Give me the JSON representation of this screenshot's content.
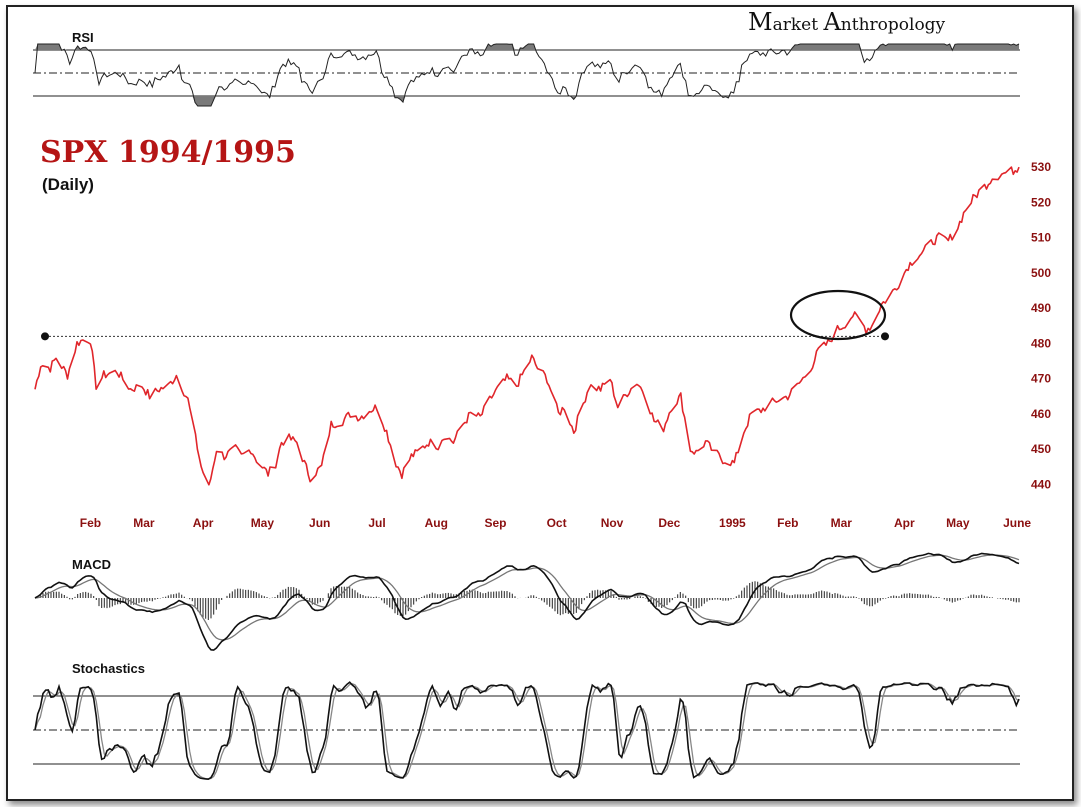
{
  "brand": {
    "first_cap": "M",
    "first_rest": "arket",
    "second_cap": "A",
    "second_rest": "nthropology"
  },
  "chart_data": {
    "type": "line",
    "title": "SPX 1994/1995",
    "subtitle": "(Daily)",
    "price_color": "#e0262b",
    "x_tick_labels": [
      "Feb",
      "Mar",
      "Apr",
      "May",
      "Jun",
      "Jul",
      "Aug",
      "Sep",
      "Oct",
      "Nov",
      "Dec",
      "1995",
      "Feb",
      "Mar",
      "Apr",
      "May",
      "June"
    ],
    "x_tick_label_1995_color": "#111111",
    "y_ticks": [
      440,
      450,
      460,
      470,
      480,
      490,
      500,
      510,
      520,
      530
    ],
    "ylim": [
      437,
      532
    ],
    "resistance_level": 482,
    "resistance_span": [
      "Feb",
      "Mar"
    ],
    "price_anchors": [
      [
        "1994-01-03",
        467
      ],
      [
        "1994-01-06",
        474
      ],
      [
        "1994-01-11",
        473
      ],
      [
        "1994-01-14",
        476
      ],
      [
        "1994-01-20",
        471
      ],
      [
        "1994-01-25",
        480
      ],
      [
        "1994-01-28",
        481
      ],
      [
        "1994-02-01",
        481
      ],
      [
        "1994-02-04",
        468
      ],
      [
        "1994-02-08",
        471
      ],
      [
        "1994-02-15",
        472
      ],
      [
        "1994-02-22",
        467
      ],
      [
        "1994-02-28",
        468
      ],
      [
        "1994-03-04",
        465
      ],
      [
        "1994-03-09",
        467
      ],
      [
        "1994-03-14",
        468
      ],
      [
        "1994-03-18",
        471
      ],
      [
        "1994-03-24",
        464
      ],
      [
        "1994-03-31",
        445
      ],
      [
        "1994-04-04",
        439
      ],
      [
        "1994-04-08",
        450
      ],
      [
        "1994-04-12",
        448
      ],
      [
        "1994-04-18",
        450
      ],
      [
        "1994-04-21",
        448
      ],
      [
        "1994-04-26",
        450
      ],
      [
        "1994-04-29",
        447
      ],
      [
        "1994-05-05",
        443
      ],
      [
        "1994-05-09",
        446
      ],
      [
        "1994-05-12",
        452
      ],
      [
        "1994-05-16",
        453
      ],
      [
        "1994-05-20",
        452
      ],
      [
        "1994-05-24",
        446
      ],
      [
        "1994-05-27",
        442
      ],
      [
        "1994-06-02",
        445
      ],
      [
        "1994-06-07",
        457
      ],
      [
        "1994-06-13",
        458
      ],
      [
        "1994-06-17",
        460
      ],
      [
        "1994-06-22",
        459
      ],
      [
        "1994-06-27",
        461
      ],
      [
        "1994-07-01",
        462
      ],
      [
        "1994-07-06",
        455
      ],
      [
        "1994-07-11",
        446
      ],
      [
        "1994-07-14",
        443
      ],
      [
        "1994-07-19",
        448
      ],
      [
        "1994-07-22",
        449
      ],
      [
        "1994-07-28",
        452
      ],
      [
        "1994-08-02",
        451
      ],
      [
        "1994-08-05",
        454
      ],
      [
        "1994-08-10",
        452
      ],
      [
        "1994-08-15",
        457
      ],
      [
        "1994-08-19",
        460
      ],
      [
        "1994-08-24",
        459
      ],
      [
        "1994-08-29",
        464
      ],
      [
        "1994-09-02",
        467
      ],
      [
        "1994-09-07",
        470
      ],
      [
        "1994-09-12",
        468
      ],
      [
        "1994-09-15",
        471
      ],
      [
        "1994-09-20",
        476
      ],
      [
        "1994-09-23",
        473
      ],
      [
        "1994-09-28",
        470
      ],
      [
        "1994-10-04",
        460
      ],
      [
        "1994-10-07",
        462
      ],
      [
        "1994-10-12",
        455
      ],
      [
        "1994-10-17",
        463
      ],
      [
        "1994-10-20",
        468
      ],
      [
        "1994-10-26",
        467
      ],
      [
        "1994-10-31",
        470
      ],
      [
        "1994-11-04",
        462
      ],
      [
        "1994-11-09",
        466
      ],
      [
        "1994-11-14",
        469
      ],
      [
        "1994-11-18",
        466
      ],
      [
        "1994-11-23",
        458
      ],
      [
        "1994-11-28",
        456
      ],
      [
        "1994-12-02",
        462
      ],
      [
        "1994-12-07",
        465
      ],
      [
        "1994-12-12",
        450
      ],
      [
        "1994-12-15",
        449
      ],
      [
        "1994-12-20",
        452
      ],
      [
        "1994-12-23",
        450
      ],
      [
        "1994-12-29",
        447
      ],
      [
        "1995-01-04",
        446
      ],
      [
        "1995-01-09",
        455
      ],
      [
        "1995-01-13",
        460
      ],
      [
        "1995-01-18",
        461
      ],
      [
        "1995-01-23",
        463
      ],
      [
        "1995-01-27",
        464
      ],
      [
        "1995-02-01",
        465
      ],
      [
        "1995-02-06",
        468
      ],
      [
        "1995-02-09",
        470
      ],
      [
        "1995-02-14",
        474
      ],
      [
        "1995-02-17",
        478
      ],
      [
        "1995-02-22",
        480
      ],
      [
        "1995-02-27",
        484
      ],
      [
        "1995-03-02",
        485
      ],
      [
        "1995-03-07",
        488
      ],
      [
        "1995-03-10",
        487
      ],
      [
        "1995-03-14",
        484
      ],
      [
        "1995-03-17",
        485
      ],
      [
        "1995-03-22",
        491
      ],
      [
        "1995-03-27",
        494
      ],
      [
        "1995-03-31",
        497
      ],
      [
        "1995-04-05",
        502
      ],
      [
        "1995-04-10",
        505
      ],
      [
        "1995-04-13",
        506
      ],
      [
        "1995-04-18",
        509
      ],
      [
        "1995-04-21",
        510
      ],
      [
        "1995-04-26",
        509
      ],
      [
        "1995-05-01",
        513
      ],
      [
        "1995-05-05",
        518
      ],
      [
        "1995-05-09",
        521
      ],
      [
        "1995-05-12",
        523
      ],
      [
        "1995-05-16",
        525
      ],
      [
        "1995-05-19",
        527
      ],
      [
        "1995-05-24",
        528
      ],
      [
        "1995-05-30",
        529
      ],
      [
        "1995-06-02",
        530
      ]
    ],
    "panels": [
      {
        "label": "RSI",
        "bands": [
          "overbought",
          "midline",
          "oversold"
        ]
      },
      {
        "label": "MACD",
        "series": [
          "macd",
          "signal",
          "histogram"
        ]
      },
      {
        "label": "Stochastics",
        "bands": [
          "overbought",
          "midline",
          "oversold"
        ]
      }
    ]
  }
}
